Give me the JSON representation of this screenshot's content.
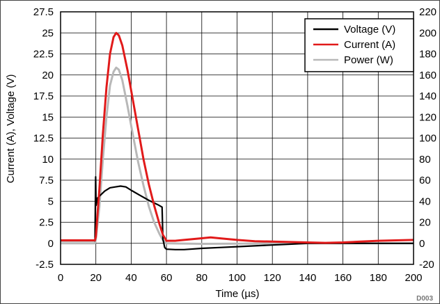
{
  "chart_data": {
    "type": "line",
    "title": "",
    "xlabel": "Time (µs)",
    "ylabel": "Current (A), Voltage (V)",
    "y2label": "",
    "xlim": [
      0,
      200
    ],
    "ylim": [
      -2.5,
      27.5
    ],
    "y2lim": [
      -20,
      220
    ],
    "grid": true,
    "legend_position": "top-right",
    "x_ticks": [
      0,
      20,
      40,
      60,
      80,
      100,
      120,
      140,
      160,
      180,
      200
    ],
    "x_tick_labels": [
      "0",
      "20",
      "40",
      "60",
      "80",
      "100",
      "120",
      "140",
      "160",
      "180",
      "200"
    ],
    "y_ticks": [
      -2.5,
      0,
      2.5,
      5,
      7.5,
      10,
      12.5,
      15,
      17.5,
      20,
      22.5,
      25,
      27.5
    ],
    "y_tick_labels": [
      "-2.5",
      "0",
      "2.5",
      "5",
      "7.5",
      "10",
      "12.5",
      "15",
      "17.5",
      "20",
      "22.5",
      "25",
      "27.5"
    ],
    "y2_ticks": [
      -20,
      0,
      20,
      40,
      60,
      80,
      100,
      120,
      140,
      160,
      180,
      200,
      220
    ],
    "y2_tick_labels": [
      "-20",
      "0",
      "20",
      "40",
      "60",
      "80",
      "100",
      "120",
      "140",
      "160",
      "180",
      "200",
      "220"
    ],
    "figure_id": "D003",
    "series": [
      {
        "name": "Voltage (V)",
        "color": "#000000",
        "axis": "left",
        "points": [
          [
            0,
            0.3
          ],
          [
            19.5,
            0.3
          ],
          [
            19.9,
            7.9
          ],
          [
            20.1,
            4.5
          ],
          [
            21,
            5.4
          ],
          [
            23,
            5.8
          ],
          [
            25,
            6.2
          ],
          [
            28,
            6.6
          ],
          [
            31,
            6.7
          ],
          [
            34,
            6.8
          ],
          [
            37,
            6.7
          ],
          [
            40,
            6.3
          ],
          [
            45,
            5.7
          ],
          [
            50,
            5.1
          ],
          [
            55,
            4.6
          ],
          [
            57.5,
            4.3
          ],
          [
            58,
            0.5
          ],
          [
            59,
            -0.5
          ],
          [
            60,
            -0.7
          ],
          [
            65,
            -0.75
          ],
          [
            70,
            -0.75
          ],
          [
            80,
            -0.6
          ],
          [
            90,
            -0.5
          ],
          [
            100,
            -0.4
          ],
          [
            110,
            -0.3
          ],
          [
            120,
            -0.2
          ],
          [
            130,
            -0.1
          ],
          [
            140,
            0
          ],
          [
            160,
            0
          ],
          [
            200,
            0
          ]
        ]
      },
      {
        "name": "Current (A)",
        "color": "#e11a1a",
        "axis": "left",
        "points": [
          [
            0,
            0.35
          ],
          [
            19.5,
            0.35
          ],
          [
            20,
            0.8
          ],
          [
            22,
            6.5
          ],
          [
            24,
            13
          ],
          [
            26,
            18.5
          ],
          [
            28,
            22.5
          ],
          [
            30,
            24.5
          ],
          [
            31.5,
            25
          ],
          [
            33,
            24.7
          ],
          [
            35,
            23.5
          ],
          [
            38,
            20.5
          ],
          [
            41,
            17
          ],
          [
            44,
            13.5
          ],
          [
            47,
            10
          ],
          [
            50,
            7
          ],
          [
            53,
            4.5
          ],
          [
            56,
            2.3
          ],
          [
            58,
            1
          ],
          [
            60,
            0.3
          ],
          [
            65,
            0.3
          ],
          [
            70,
            0.4
          ],
          [
            80,
            0.6
          ],
          [
            85,
            0.7
          ],
          [
            90,
            0.6
          ],
          [
            100,
            0.4
          ],
          [
            110,
            0.25
          ],
          [
            120,
            0.2
          ],
          [
            140,
            0.1
          ],
          [
            150,
            0.05
          ],
          [
            160,
            0.1
          ],
          [
            170,
            0.2
          ],
          [
            180,
            0.3
          ],
          [
            190,
            0.35
          ],
          [
            200,
            0.4
          ]
        ]
      },
      {
        "name": "Power (W)",
        "color": "#b8b8b8",
        "axis": "right",
        "points": [
          [
            0,
            0
          ],
          [
            19.5,
            0
          ],
          [
            20,
            4
          ],
          [
            22,
            35
          ],
          [
            24,
            80
          ],
          [
            26,
            120
          ],
          [
            28,
            150
          ],
          [
            30,
            163
          ],
          [
            31.5,
            167
          ],
          [
            33,
            165
          ],
          [
            35,
            155
          ],
          [
            38,
            130
          ],
          [
            41,
            103
          ],
          [
            44,
            77
          ],
          [
            47,
            55
          ],
          [
            50,
            35
          ],
          [
            53,
            20
          ],
          [
            56,
            9
          ],
          [
            58,
            3
          ],
          [
            60,
            0
          ],
          [
            80,
            -0.5
          ],
          [
            100,
            -0.3
          ],
          [
            120,
            -0.1
          ],
          [
            140,
            0
          ],
          [
            160,
            0
          ],
          [
            180,
            0
          ],
          [
            200,
            0
          ]
        ]
      }
    ]
  }
}
